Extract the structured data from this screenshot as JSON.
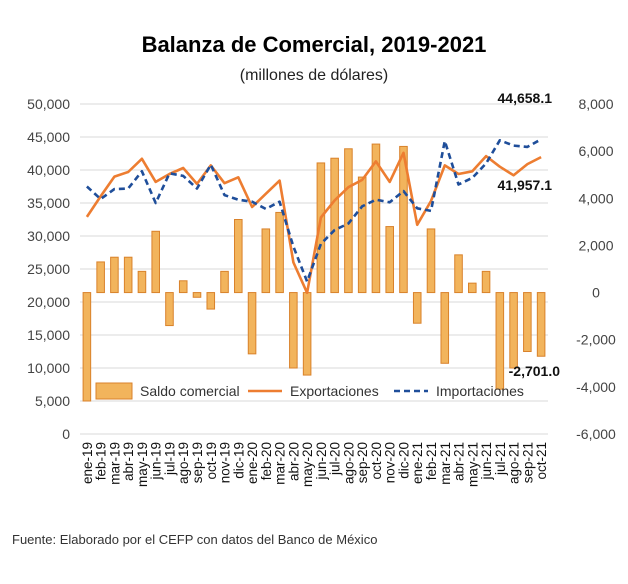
{
  "chart_data": {
    "type": "bar+line",
    "title": "Balanza de Comercial, 2019-2021",
    "subtitle": "(millones de dólares)",
    "source": "Fuente: Elaborado por el CEFP con datos del Banco de México",
    "categories": [
      "ene-19",
      "feb-19",
      "mar-19",
      "abr-19",
      "may-19",
      "jun-19",
      "jul-19",
      "ago-19",
      "sep-19",
      "oct-19",
      "nov-19",
      "dic-19",
      "ene-20",
      "feb-20",
      "mar-20",
      "abr-20",
      "may-20",
      "jun-20",
      "jul-20",
      "ago-20",
      "sep-20",
      "oct-20",
      "nov-20",
      "dic-20",
      "ene-21",
      "feb-21",
      "mar-21",
      "abr-21",
      "may-21",
      "jun-21",
      "jul-21",
      "ago-21",
      "sep-21",
      "oct-21"
    ],
    "left_axis": {
      "min": 0,
      "max": 50000,
      "step": 5000,
      "ticks": [
        "0",
        "5,000",
        "10,000",
        "15,000",
        "20,000",
        "25,000",
        "30,000",
        "35,000",
        "40,000",
        "45,000",
        "50,000"
      ]
    },
    "right_axis": {
      "min": -6000,
      "max": 8000,
      "step": 2000,
      "ticks": [
        "-6,000",
        "-4,000",
        "-2,000",
        "0",
        "2,000",
        "4,000",
        "6,000",
        "8,000"
      ]
    },
    "series": [
      {
        "name": "Saldo comercial",
        "type": "bar",
        "axis": "right",
        "color": "#F2B45C",
        "stroke": "#D9822B",
        "values": [
          -4600,
          1300,
          1500,
          1500,
          900,
          2600,
          -1400,
          500,
          -200,
          -700,
          900,
          3100,
          -2600,
          2700,
          3400,
          -3200,
          -3500,
          5500,
          5700,
          6100,
          4900,
          6300,
          2800,
          6200,
          -1300,
          2700,
          -3000,
          1600,
          400,
          900,
          -4100,
          -3200,
          -2500,
          -2701.0
        ]
      },
      {
        "name": "Exportaciones",
        "type": "line",
        "axis": "left",
        "color": "#ED7D31",
        "dash": false,
        "values": [
          32900,
          36000,
          39000,
          39700,
          41700,
          38200,
          39400,
          40300,
          37900,
          40700,
          38000,
          38900,
          34400,
          36400,
          38400,
          26000,
          21400,
          32800,
          35400,
          37400,
          38500,
          41300,
          38200,
          42600,
          31700,
          35300,
          40700,
          39400,
          39800,
          42100,
          40500,
          39200,
          40900,
          41957.1
        ]
      },
      {
        "name": "Importaciones",
        "type": "line",
        "axis": "left",
        "color": "#1F4E9A",
        "dash": true,
        "values": [
          37500,
          35600,
          37100,
          37200,
          39800,
          35000,
          39500,
          39100,
          37200,
          40800,
          36200,
          35500,
          35200,
          34100,
          35200,
          28400,
          23100,
          28800,
          30900,
          31900,
          34500,
          35500,
          35100,
          36800,
          34200,
          33800,
          44400,
          37800,
          38800,
          41000,
          44500,
          43700,
          43500,
          44658.1
        ]
      }
    ],
    "annotations": [
      {
        "text": "44,658.1",
        "series": "Importaciones",
        "index": 33
      },
      {
        "text": "41,957.1",
        "series": "Exportaciones",
        "index": 33
      },
      {
        "text": "-2,701.0",
        "series": "Saldo comercial",
        "index": 33
      }
    ],
    "legend": {
      "placement": "bottom-inside",
      "items": [
        "Saldo comercial",
        "Exportaciones",
        "Importaciones"
      ]
    },
    "grid": true
  }
}
